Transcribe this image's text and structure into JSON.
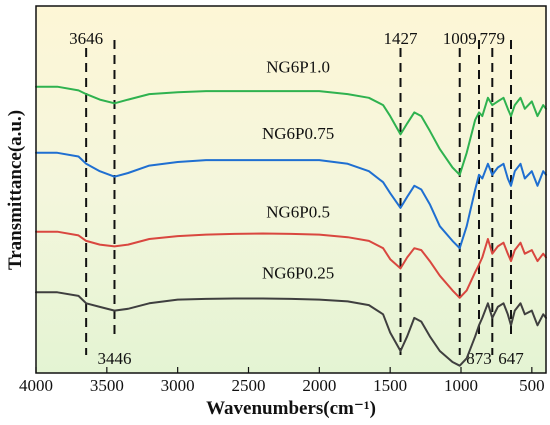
{
  "chart_data": {
    "type": "line",
    "xlabel": "Wavenumbers(cm⁻¹)",
    "ylabel": "Transmittance(a.u.)",
    "xlim": [
      4000,
      400
    ],
    "x_reversed": true,
    "x_ticks": [
      "4000",
      "3500",
      "3000",
      "2500",
      "2000",
      "1500",
      "1000",
      "500"
    ],
    "y_ticks_shown": false,
    "background": "vertical gradient, pale yellow top to pale green bottom",
    "series": [
      {
        "name": "NG6P1.0",
        "color": "#2fb24f",
        "offset": 0.78,
        "points": [
          [
            4000,
            0.0
          ],
          [
            3850,
            0.0
          ],
          [
            3700,
            -0.01
          ],
          [
            3646,
            -0.02
          ],
          [
            3550,
            -0.035
          ],
          [
            3446,
            -0.045
          ],
          [
            3350,
            -0.035
          ],
          [
            3200,
            -0.02
          ],
          [
            3000,
            -0.015
          ],
          [
            2800,
            -0.012
          ],
          [
            2600,
            -0.012
          ],
          [
            2400,
            -0.012
          ],
          [
            2200,
            -0.012
          ],
          [
            2000,
            -0.012
          ],
          [
            1800,
            -0.02
          ],
          [
            1650,
            -0.03
          ],
          [
            1550,
            -0.05
          ],
          [
            1500,
            -0.08
          ],
          [
            1427,
            -0.13
          ],
          [
            1380,
            -0.1
          ],
          [
            1330,
            -0.07
          ],
          [
            1280,
            -0.08
          ],
          [
            1220,
            -0.12
          ],
          [
            1150,
            -0.17
          ],
          [
            1060,
            -0.22
          ],
          [
            1009,
            -0.24
          ],
          [
            960,
            -0.18
          ],
          [
            900,
            -0.09
          ],
          [
            873,
            -0.07
          ],
          [
            850,
            -0.08
          ],
          [
            810,
            -0.03
          ],
          [
            779,
            -0.05
          ],
          [
            740,
            -0.04
          ],
          [
            700,
            -0.03
          ],
          [
            670,
            -0.06
          ],
          [
            647,
            -0.08
          ],
          [
            620,
            -0.05
          ],
          [
            580,
            -0.03
          ],
          [
            550,
            -0.06
          ],
          [
            500,
            -0.04
          ],
          [
            460,
            -0.08
          ],
          [
            420,
            -0.05
          ],
          [
            400,
            -0.06
          ]
        ]
      },
      {
        "name": "NG6P0.75",
        "color": "#1f6fd1",
        "offset": 0.6,
        "points": [
          [
            4000,
            0.0
          ],
          [
            3850,
            0.0
          ],
          [
            3700,
            -0.01
          ],
          [
            3646,
            -0.03
          ],
          [
            3550,
            -0.05
          ],
          [
            3446,
            -0.065
          ],
          [
            3350,
            -0.055
          ],
          [
            3200,
            -0.035
          ],
          [
            3000,
            -0.025
          ],
          [
            2800,
            -0.02
          ],
          [
            2600,
            -0.02
          ],
          [
            2400,
            -0.02
          ],
          [
            2200,
            -0.02
          ],
          [
            2000,
            -0.02
          ],
          [
            1800,
            -0.03
          ],
          [
            1650,
            -0.05
          ],
          [
            1550,
            -0.08
          ],
          [
            1500,
            -0.11
          ],
          [
            1427,
            -0.15
          ],
          [
            1380,
            -0.12
          ],
          [
            1330,
            -0.09
          ],
          [
            1280,
            -0.1
          ],
          [
            1220,
            -0.14
          ],
          [
            1150,
            -0.2
          ],
          [
            1060,
            -0.24
          ],
          [
            1009,
            -0.26
          ],
          [
            960,
            -0.2
          ],
          [
            900,
            -0.1
          ],
          [
            873,
            -0.06
          ],
          [
            850,
            -0.07
          ],
          [
            810,
            -0.03
          ],
          [
            779,
            -0.06
          ],
          [
            740,
            -0.04
          ],
          [
            700,
            -0.03
          ],
          [
            670,
            -0.07
          ],
          [
            647,
            -0.09
          ],
          [
            620,
            -0.05
          ],
          [
            580,
            -0.03
          ],
          [
            550,
            -0.07
          ],
          [
            500,
            -0.05
          ],
          [
            460,
            -0.09
          ],
          [
            420,
            -0.05
          ],
          [
            400,
            -0.06
          ]
        ]
      },
      {
        "name": "NG6P0.5",
        "color": "#d9473f",
        "offset": 0.385,
        "points": [
          [
            4000,
            0.0
          ],
          [
            3850,
            0.0
          ],
          [
            3700,
            -0.01
          ],
          [
            3646,
            -0.025
          ],
          [
            3550,
            -0.035
          ],
          [
            3446,
            -0.04
          ],
          [
            3350,
            -0.035
          ],
          [
            3200,
            -0.02
          ],
          [
            3000,
            -0.012
          ],
          [
            2800,
            -0.008
          ],
          [
            2600,
            -0.006
          ],
          [
            2400,
            -0.005
          ],
          [
            2200,
            -0.006
          ],
          [
            2000,
            -0.008
          ],
          [
            1800,
            -0.015
          ],
          [
            1650,
            -0.025
          ],
          [
            1550,
            -0.045
          ],
          [
            1500,
            -0.075
          ],
          [
            1427,
            -0.1
          ],
          [
            1380,
            -0.07
          ],
          [
            1330,
            -0.045
          ],
          [
            1280,
            -0.05
          ],
          [
            1220,
            -0.08
          ],
          [
            1150,
            -0.12
          ],
          [
            1060,
            -0.16
          ],
          [
            1009,
            -0.18
          ],
          [
            960,
            -0.16
          ],
          [
            900,
            -0.11
          ],
          [
            873,
            -0.09
          ],
          [
            850,
            -0.07
          ],
          [
            810,
            -0.02
          ],
          [
            779,
            -0.06
          ],
          [
            740,
            -0.04
          ],
          [
            700,
            -0.03
          ],
          [
            670,
            -0.06
          ],
          [
            647,
            -0.08
          ],
          [
            620,
            -0.05
          ],
          [
            580,
            -0.03
          ],
          [
            550,
            -0.06
          ],
          [
            500,
            -0.05
          ],
          [
            460,
            -0.08
          ],
          [
            420,
            -0.06
          ],
          [
            400,
            -0.07
          ]
        ]
      },
      {
        "name": "NG6P0.25",
        "color": "#3f3f3f",
        "offset": 0.22,
        "points": [
          [
            4000,
            0.0
          ],
          [
            3850,
            0.0
          ],
          [
            3700,
            -0.01
          ],
          [
            3646,
            -0.03
          ],
          [
            3550,
            -0.04
          ],
          [
            3446,
            -0.05
          ],
          [
            3350,
            -0.045
          ],
          [
            3200,
            -0.03
          ],
          [
            3000,
            -0.02
          ],
          [
            2800,
            -0.018
          ],
          [
            2600,
            -0.017
          ],
          [
            2400,
            -0.017
          ],
          [
            2200,
            -0.018
          ],
          [
            2000,
            -0.02
          ],
          [
            1800,
            -0.025
          ],
          [
            1650,
            -0.035
          ],
          [
            1550,
            -0.06
          ],
          [
            1500,
            -0.11
          ],
          [
            1427,
            -0.16
          ],
          [
            1380,
            -0.12
          ],
          [
            1330,
            -0.07
          ],
          [
            1280,
            -0.08
          ],
          [
            1220,
            -0.12
          ],
          [
            1150,
            -0.16
          ],
          [
            1060,
            -0.19
          ],
          [
            1009,
            -0.2
          ],
          [
            960,
            -0.18
          ],
          [
            900,
            -0.12
          ],
          [
            873,
            -0.09
          ],
          [
            850,
            -0.07
          ],
          [
            810,
            -0.03
          ],
          [
            779,
            -0.07
          ],
          [
            740,
            -0.04
          ],
          [
            700,
            -0.03
          ],
          [
            670,
            -0.06
          ],
          [
            647,
            -0.09
          ],
          [
            620,
            -0.05
          ],
          [
            580,
            -0.03
          ],
          [
            550,
            -0.06
          ],
          [
            500,
            -0.05
          ],
          [
            460,
            -0.09
          ],
          [
            420,
            -0.06
          ],
          [
            400,
            -0.07
          ]
        ]
      }
    ],
    "annotations": [
      {
        "label": "3646",
        "x": 3646,
        "label_position": "top"
      },
      {
        "label": "3446",
        "x": 3446,
        "label_position": "bottom"
      },
      {
        "label": "1427",
        "x": 1427,
        "label_position": "top"
      },
      {
        "label": "1009",
        "x": 1009,
        "label_position": "top"
      },
      {
        "label": "873",
        "x": 873,
        "label_position": "bottom"
      },
      {
        "label": "779",
        "x": 779,
        "label_position": "top"
      },
      {
        "label": "647",
        "x": 647,
        "label_position": "bottom"
      }
    ],
    "annotation_style": "vertical black dashed lines"
  }
}
